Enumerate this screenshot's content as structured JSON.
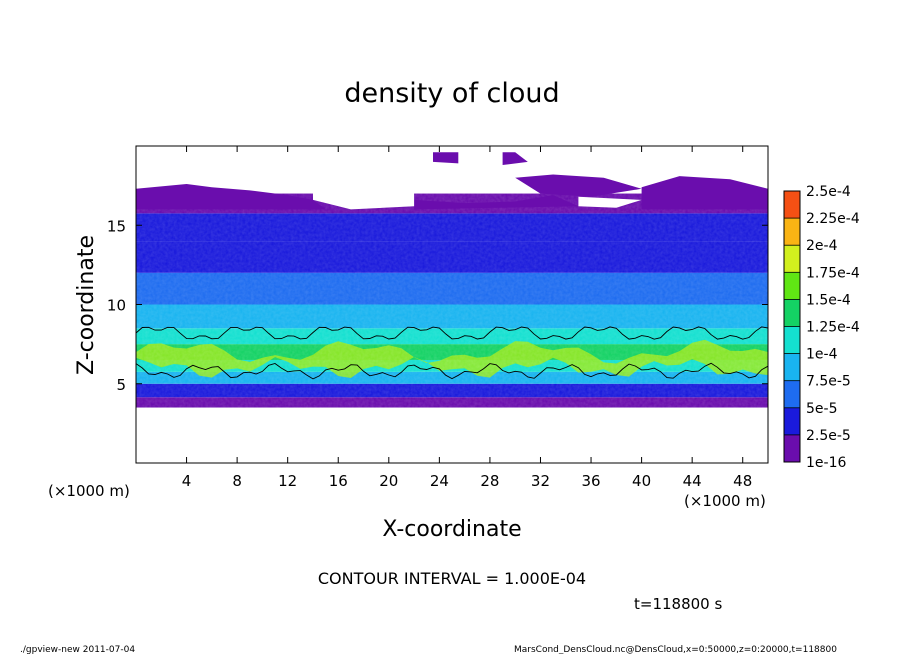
{
  "chart_data": {
    "type": "heatmap",
    "title": "density of cloud",
    "xlabel": "X-coordinate",
    "ylabel": "Z-coordinate",
    "x_unit_left": "(×1000 m)",
    "x_unit_right": "(×1000 m)",
    "xlim": [
      0,
      50
    ],
    "ylim": [
      0,
      20
    ],
    "x_ticks": [
      4,
      8,
      12,
      16,
      20,
      24,
      28,
      32,
      36,
      40,
      44,
      48
    ],
    "y_ticks": [
      5,
      10,
      15
    ],
    "colorbar": {
      "labels": [
        "1e-16",
        "2.5e-5",
        "5e-5",
        "7.5e-5",
        "1e-4",
        "1.25e-4",
        "1.5e-4",
        "1.75e-4",
        "2e-4",
        "2.25e-4",
        "2.5e-4"
      ],
      "colors": [
        "#6a0dad",
        "#1a1adc",
        "#1e6cf0",
        "#19b4f0",
        "#14e0d0",
        "#14d264",
        "#60e614",
        "#d2f01e",
        "#fab414",
        "#f55014",
        "#f59696"
      ]
    },
    "profile": {
      "description_levels_z": [
        3.8,
        4.5,
        5.5,
        6.0,
        7.0,
        8.0,
        9.0,
        11.0,
        13.0,
        15.0,
        16.5,
        17.5
      ],
      "density_e5": [
        1,
        4,
        7.5,
        10,
        14,
        10,
        8,
        6,
        4.5,
        3,
        1,
        0
      ]
    },
    "contour_interval": "CONTOUR INTERVAL = 1.000E-04",
    "time_label": "t=118800 s"
  },
  "footer": {
    "left": "./gpview-new   2011-07-04",
    "right": "MarsCond_DensCloud.nc@DensCloud,x=0:50000,z=0:20000,t=118800"
  }
}
